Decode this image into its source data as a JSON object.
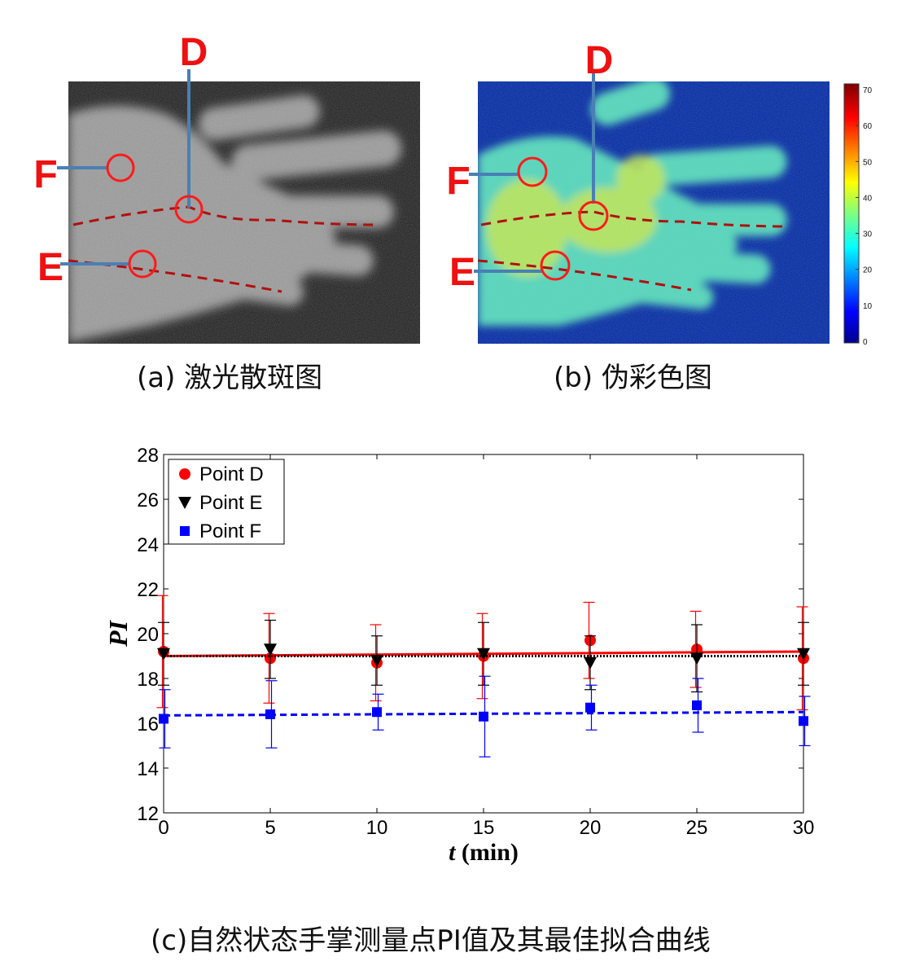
{
  "panel_a": {
    "caption": "(a) 激光散斑图",
    "labels": {
      "d": "D",
      "e": "E",
      "f": "F"
    }
  },
  "panel_b": {
    "caption": "(b) 伪彩色图",
    "labels": {
      "d": "D",
      "e": "E",
      "f": "F"
    },
    "colorbar_ticks": [
      "70",
      "60",
      "50",
      "40",
      "30",
      "20",
      "10",
      "0"
    ]
  },
  "chart_caption": "(c)自然状态手掌测量点PI值及其最佳拟合曲线",
  "chart_data": {
    "type": "scatter",
    "xlabel_italic": "t",
    "xlabel_rest": " (min)",
    "ylabel": "PI",
    "xlim": [
      0,
      30
    ],
    "ylim": [
      12,
      28
    ],
    "xticks": [
      0,
      5,
      10,
      15,
      20,
      25,
      30
    ],
    "yticks": [
      12,
      14,
      16,
      18,
      20,
      22,
      24,
      26,
      28
    ],
    "grid": false,
    "legend_position": "top-left",
    "x": [
      0,
      5,
      10,
      15,
      20,
      25,
      30
    ],
    "series": [
      {
        "name": "Point D",
        "marker": "circle",
        "color": "#ff0000",
        "values": [
          19.2,
          18.9,
          18.7,
          19.0,
          19.7,
          19.3,
          18.9
        ],
        "err": [
          2.5,
          2.0,
          1.7,
          1.9,
          1.7,
          1.7,
          2.3
        ],
        "fit": [
          19.0,
          19.2
        ],
        "fit_style": "solid"
      },
      {
        "name": "Point E",
        "marker": "triangle-down",
        "color": "#000000",
        "values": [
          19.1,
          19.3,
          18.8,
          19.1,
          18.7,
          18.9,
          19.1
        ],
        "err": [
          1.4,
          1.3,
          1.1,
          1.4,
          1.2,
          1.5,
          1.4
        ],
        "fit": [
          19.0,
          19.0
        ],
        "fit_style": "dotted"
      },
      {
        "name": "Point F",
        "marker": "square",
        "color": "#0000ff",
        "values": [
          16.2,
          16.4,
          16.5,
          16.3,
          16.7,
          16.8,
          16.1
        ],
        "err": [
          1.3,
          1.5,
          0.8,
          1.8,
          1.0,
          1.2,
          1.1
        ],
        "fit": [
          16.35,
          16.5
        ],
        "fit_style": "dashed"
      }
    ]
  }
}
